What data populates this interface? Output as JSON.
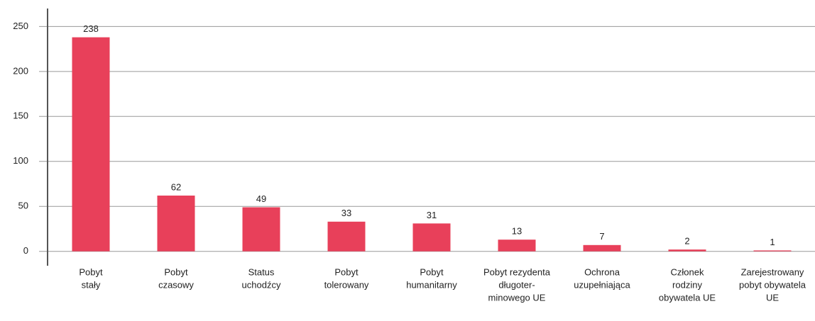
{
  "chart_data": {
    "type": "bar",
    "categories": [
      [
        "Pobyt",
        "stały"
      ],
      [
        "Pobyt",
        "czasowy"
      ],
      [
        "Status",
        "uchodźcy"
      ],
      [
        "Pobyt",
        "tolerowany"
      ],
      [
        "Pobyt",
        "humanitarny"
      ],
      [
        "Pobyt rezydenta",
        "długoter-",
        "minowego UE"
      ],
      [
        "Ochrona",
        "uzupełniająca"
      ],
      [
        "Członek",
        "rodziny",
        "obywatela UE"
      ],
      [
        "Zarejestrowany",
        "pobyt obywatela",
        "UE"
      ]
    ],
    "values": [
      238,
      62,
      49,
      33,
      31,
      13,
      7,
      2,
      1
    ],
    "color": "#e8405a",
    "ylim": [
      -16,
      270
    ],
    "yticks": [
      0,
      50,
      100,
      150,
      200,
      250
    ],
    "grid": true
  }
}
